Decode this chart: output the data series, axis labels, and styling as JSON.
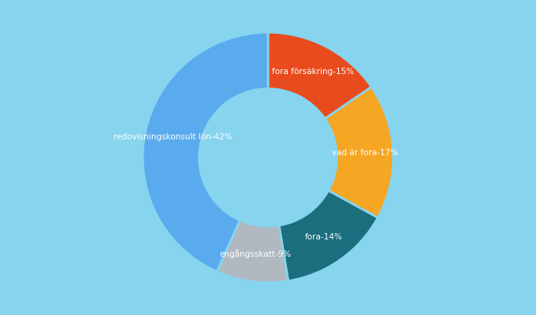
{
  "labels": [
    "fora försäkring",
    "vad är fora",
    "fora",
    "engångsskatt",
    "redovisningskonsult lön"
  ],
  "values": [
    15,
    17,
    14,
    9,
    42
  ],
  "colors": [
    "#e84c1e",
    "#f5a623",
    "#1a6e7e",
    "#b0b8c0",
    "#5aabee"
  ],
  "label_colors": [
    "white",
    "white",
    "white",
    "white",
    "white"
  ],
  "background_color": "#87d4ee",
  "donut_width": 0.45,
  "startangle": 90
}
